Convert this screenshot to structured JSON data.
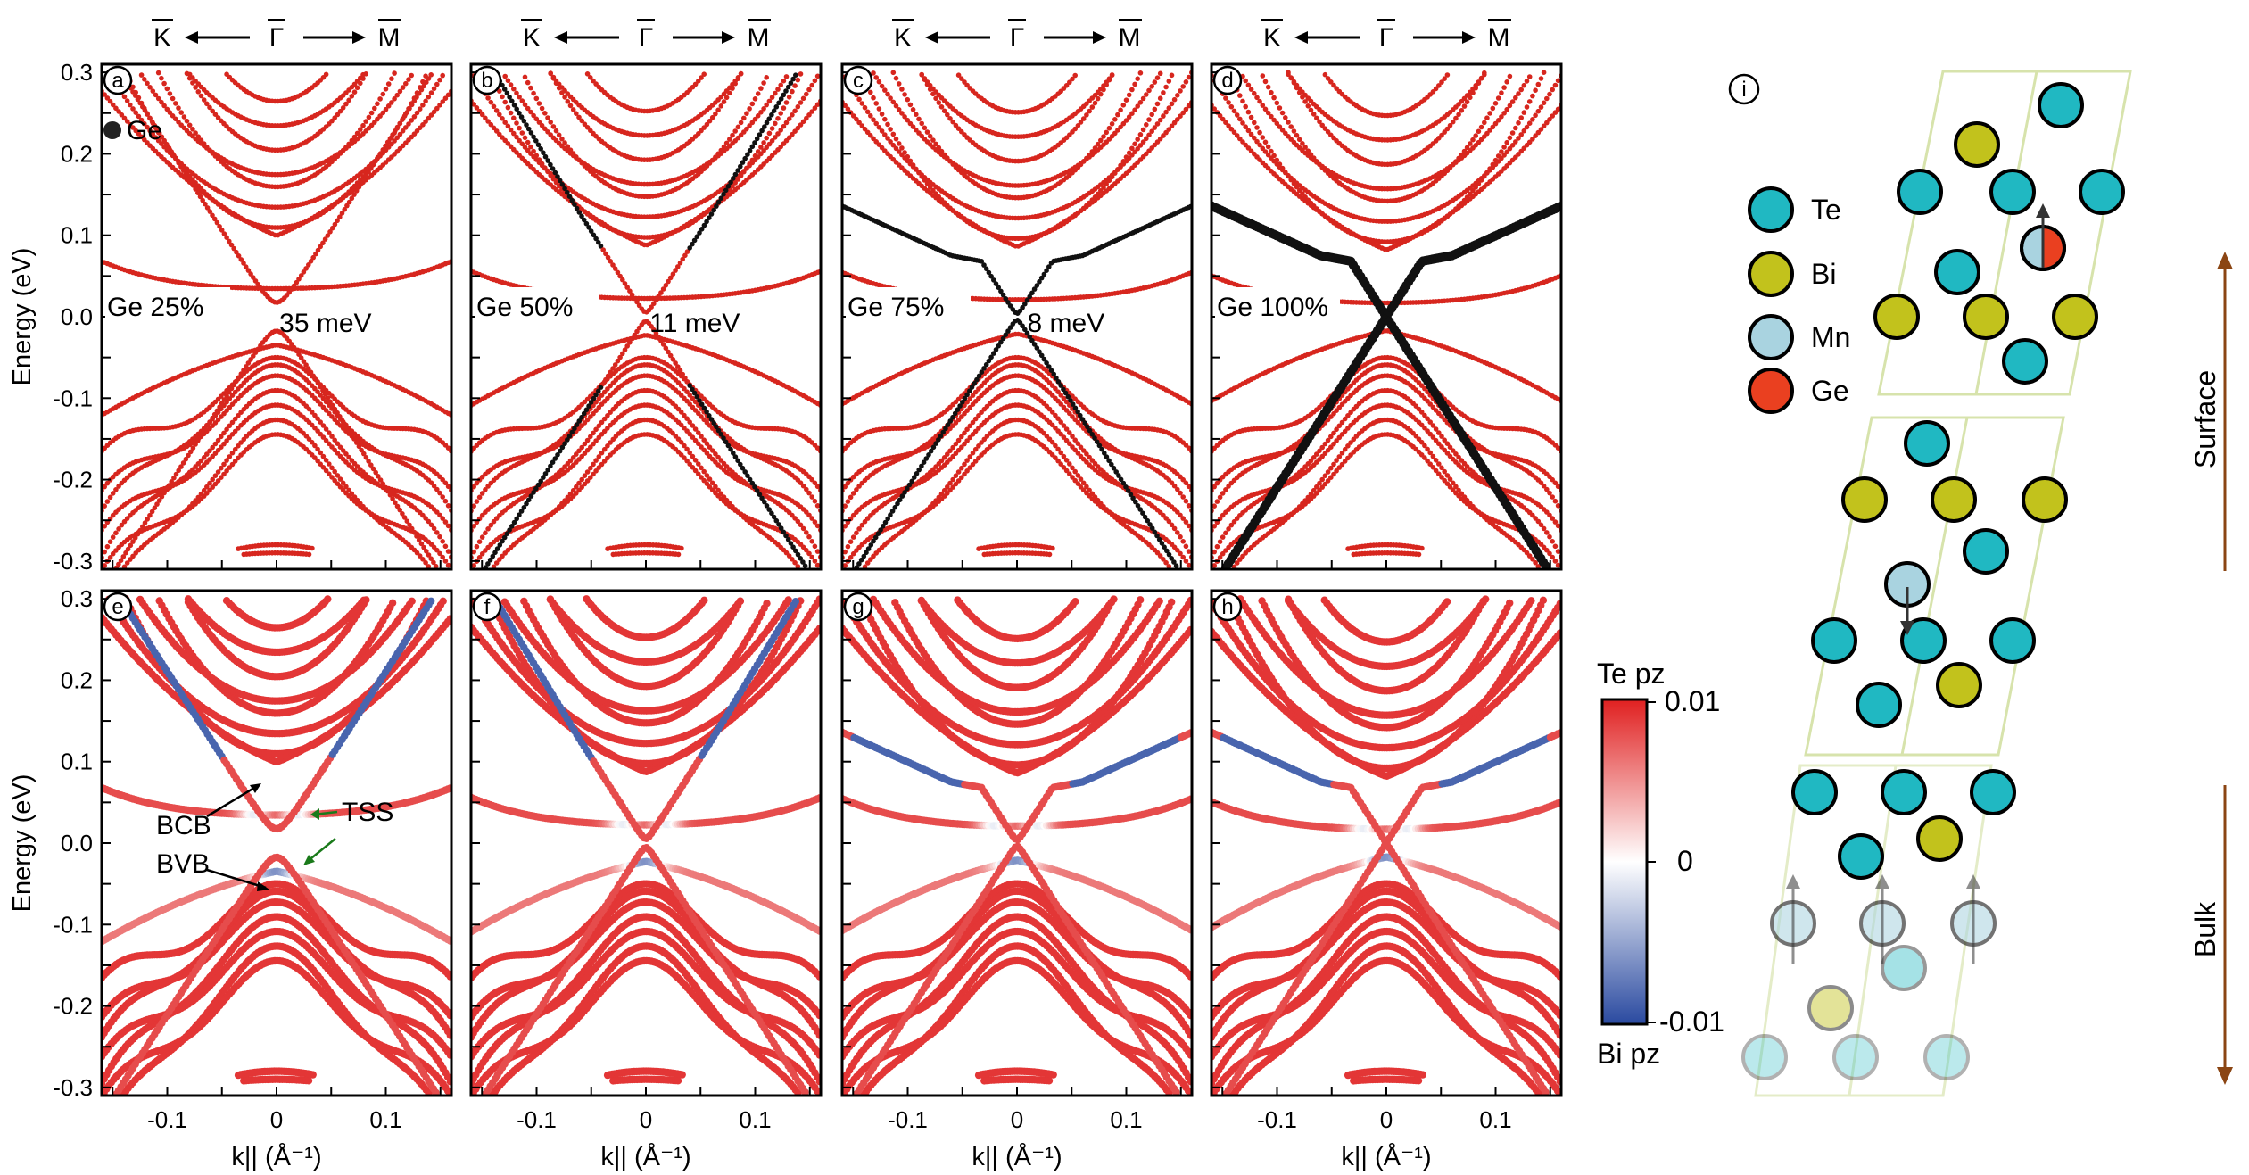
{
  "figure": {
    "header": {
      "k_left": "K",
      "gamma": "Γ",
      "k_right": "M"
    },
    "y_axis_label": "Energy (eV)",
    "x_axis_label": "k|| (Å⁻¹)",
    "x_tick_labels": [
      "-0.1",
      "0",
      "0.1"
    ],
    "y_tick_labels": [
      "0.3",
      "0.2",
      "0.1",
      "0.0",
      "-0.1",
      "-0.2",
      "-0.3"
    ],
    "colorbar": {
      "top_label": "Te pz",
      "bottom_label": "Bi pz",
      "max": "0.01",
      "mid": "0",
      "min": "-0.01",
      "color_top": "#e02020",
      "color_mid": "#ffffff",
      "color_bottom": "#2a4aa0"
    },
    "legend": {
      "te": "Te",
      "bi": "Bi",
      "mn": "Mn",
      "ge": "Ge",
      "te_color": "#20b8c2",
      "bi_color": "#c2c21c",
      "mn_color": "#a9d3e0",
      "ge_color": "#ea4020"
    },
    "structure": {
      "panel_letter": "i",
      "surface_label": "Surface",
      "bulk_label": "Bulk",
      "arrow_color": "#8b4513"
    },
    "annotations": {
      "ge_marker": "Ge",
      "bcb": "BCB",
      "bvb": "BVB",
      "tss": "TSS",
      "tss_color": "#1a7a1a"
    }
  },
  "chart_data": [
    {
      "type": "scatter",
      "panel": "a",
      "label": "Ge 25%",
      "gap": "35 meV",
      "gap_eV": 0.035,
      "color_mode": "Ge weight",
      "xlim": [
        -0.16,
        0.16
      ],
      "ylim": [
        -0.31,
        0.31
      ]
    },
    {
      "type": "scatter",
      "panel": "b",
      "label": "Ge 50%",
      "gap": "11 meV",
      "gap_eV": 0.011,
      "color_mode": "Ge weight",
      "xlim": [
        -0.16,
        0.16
      ],
      "ylim": [
        -0.31,
        0.31
      ]
    },
    {
      "type": "scatter",
      "panel": "c",
      "label": "Ge 75%",
      "gap": "8 meV",
      "gap_eV": 0.008,
      "color_mode": "Ge weight",
      "xlim": [
        -0.16,
        0.16
      ],
      "ylim": [
        -0.31,
        0.31
      ]
    },
    {
      "type": "scatter",
      "panel": "d",
      "label": "Ge 100%",
      "gap": "",
      "gap_eV": 0.0,
      "color_mode": "Ge weight",
      "xlim": [
        -0.16,
        0.16
      ],
      "ylim": [
        -0.31,
        0.31
      ]
    },
    {
      "type": "scatter",
      "panel": "e",
      "label": "",
      "gap": "",
      "gap_eV": 0.035,
      "color_mode": "pz",
      "xlim": [
        -0.16,
        0.16
      ],
      "ylim": [
        -0.31,
        0.31
      ]
    },
    {
      "type": "scatter",
      "panel": "f",
      "label": "",
      "gap": "",
      "gap_eV": 0.011,
      "color_mode": "pz",
      "xlim": [
        -0.16,
        0.16
      ],
      "ylim": [
        -0.31,
        0.31
      ]
    },
    {
      "type": "scatter",
      "panel": "g",
      "label": "",
      "gap": "",
      "gap_eV": 0.008,
      "color_mode": "pz",
      "xlim": [
        -0.16,
        0.16
      ],
      "ylim": [
        -0.31,
        0.31
      ]
    },
    {
      "type": "scatter",
      "panel": "h",
      "label": "",
      "gap": "",
      "gap_eV": 0.0,
      "color_mode": "pz",
      "xlim": [
        -0.16,
        0.16
      ],
      "ylim": [
        -0.31,
        0.31
      ]
    }
  ]
}
